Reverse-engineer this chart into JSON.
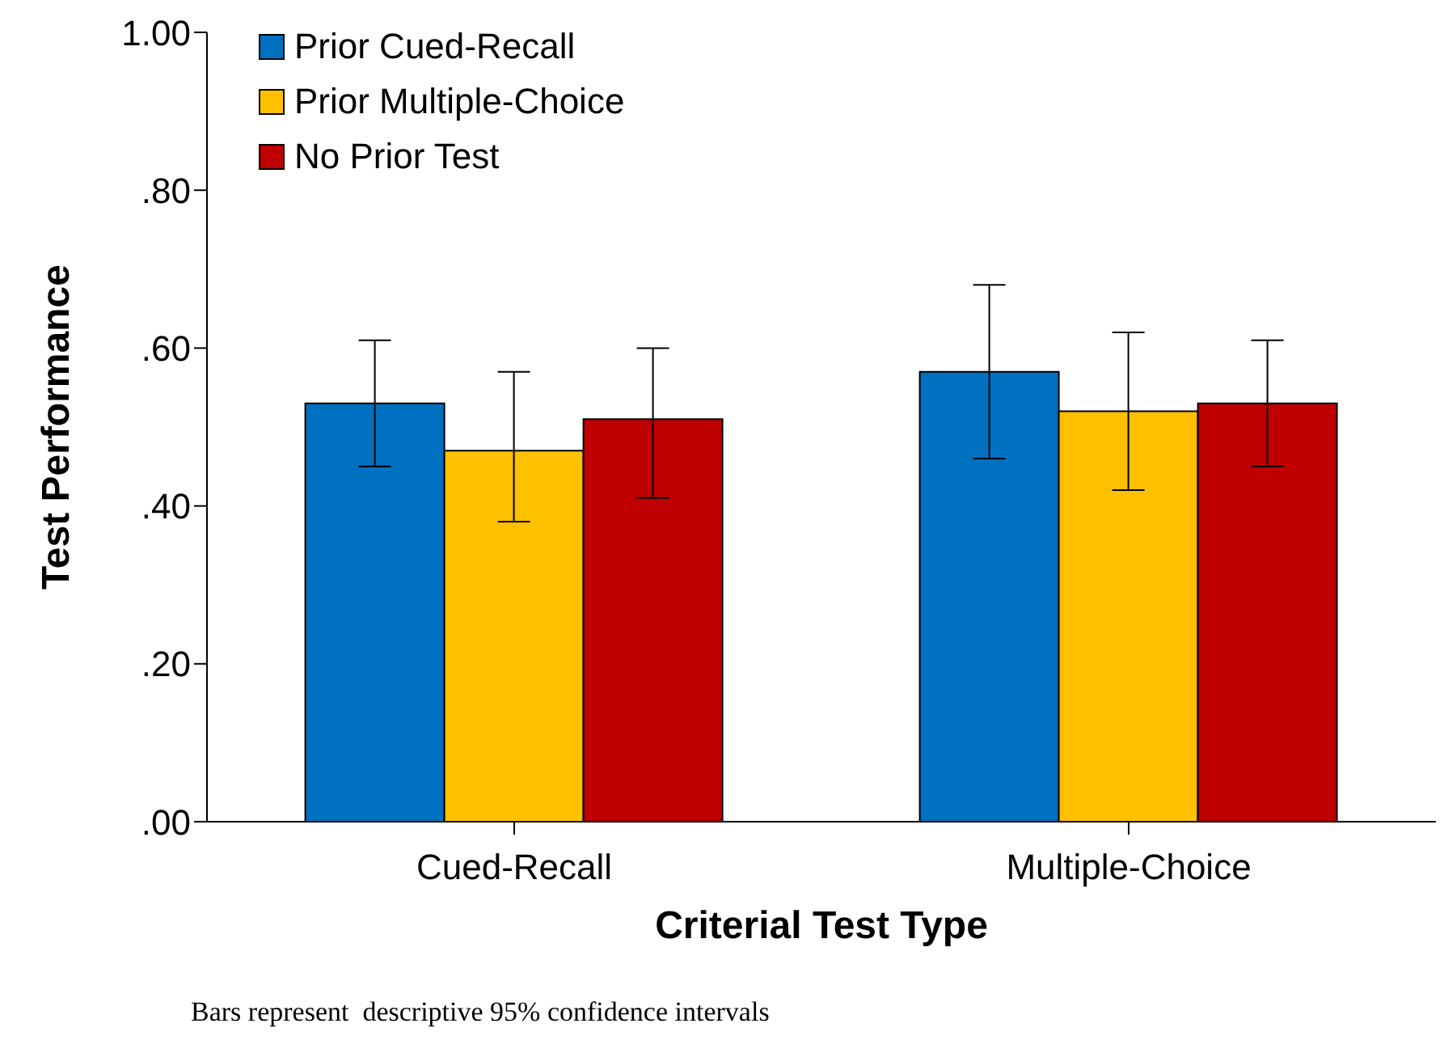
{
  "chart_data": {
    "type": "bar",
    "xlabel": "Criterial Test Type",
    "ylabel": "Test Performance",
    "categories": [
      "Cued-Recall",
      "Multiple-Choice"
    ],
    "series": [
      {
        "name": "Prior Cued-Recall",
        "color": "#0070c0",
        "values": [
          0.53,
          0.57
        ],
        "errors": [
          [
            0.45,
            0.61
          ],
          [
            0.46,
            0.68
          ]
        ]
      },
      {
        "name": "Prior Multiple-Choice",
        "color": "#ffc000",
        "values": [
          0.47,
          0.52
        ],
        "errors": [
          [
            0.38,
            0.57
          ],
          [
            0.42,
            0.62
          ]
        ]
      },
      {
        "name": "No Prior Test",
        "color": "#c00000",
        "values": [
          0.51,
          0.53
        ],
        "errors": [
          [
            0.41,
            0.6
          ],
          [
            0.45,
            0.61
          ]
        ]
      }
    ],
    "ylim": [
      0,
      1
    ],
    "yticks": [
      {
        "value": 0,
        "label": ".00"
      },
      {
        "value": 0.2,
        "label": ".20"
      },
      {
        "value": 0.4,
        "label": ".40"
      },
      {
        "value": 0.6,
        "label": ".60"
      },
      {
        "value": 0.8,
        "label": ".80"
      },
      {
        "value": 1,
        "label": "1.00"
      }
    ],
    "grid": false,
    "legend": "top left",
    "annotations": [
      "Bars represent  descriptive 95% confidence intervals"
    ]
  }
}
